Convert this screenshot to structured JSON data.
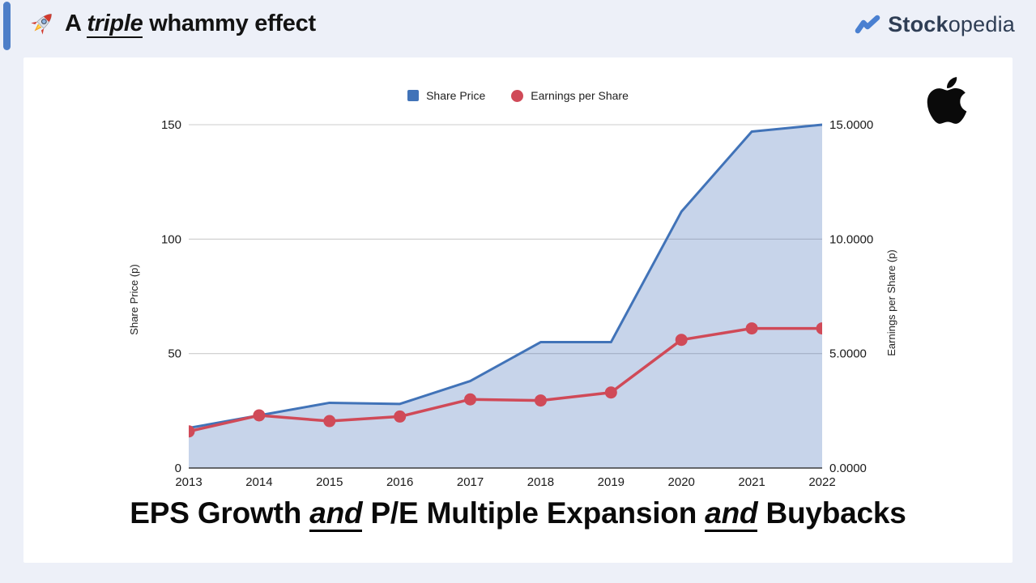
{
  "header": {
    "title": {
      "prefix": "A ",
      "emphasis": "triple",
      "suffix": " whammy effect"
    },
    "brand": {
      "name_bold": "Stock",
      "name_light": "opedia"
    }
  },
  "caption": {
    "part1": "EPS Growth ",
    "and1": "and",
    "part2": " P/E Multiple Expansion ",
    "and2": "and",
    "part3": " Buybacks"
  },
  "colors": {
    "page_background": "#edf0f8",
    "card_background": "#ffffff",
    "accent_bar": "#4d7ec8",
    "brand_blue": "#4a80d1",
    "brand_navy": "#2f3e55",
    "share_price_blue": "#4173b8",
    "eps_red": "#d04a58",
    "gridline": "#cccccc",
    "axis_line": "#3c3c3c"
  },
  "chart_data": {
    "type": "area",
    "categories": [
      "2013",
      "2014",
      "2015",
      "2016",
      "2017",
      "2018",
      "2019",
      "2020",
      "2021",
      "2022"
    ],
    "series": [
      {
        "name": "Share Price",
        "type": "area",
        "axis": "left",
        "color": "#4173b8",
        "fill": "rgba(68,114,185,0.30)",
        "marker": false,
        "values": [
          17.5,
          23,
          28.5,
          28,
          38,
          55,
          55,
          112,
          147,
          150
        ]
      },
      {
        "name": "Earnings per Share",
        "type": "line",
        "axis": "right",
        "color": "#d04a58",
        "marker": true,
        "values": [
          1.6,
          2.3,
          2.05,
          2.25,
          3.0,
          2.95,
          3.3,
          5.6,
          6.1,
          6.1
        ]
      }
    ],
    "left_axis": {
      "label": "Share Price (p)",
      "min": 0,
      "max": 150,
      "ticks": [
        0,
        50,
        100,
        150
      ],
      "tick_labels": [
        "0",
        "50",
        "100",
        "150"
      ]
    },
    "right_axis": {
      "label": "Earnings per Share (p)",
      "min": 0,
      "max": 15,
      "ticks": [
        0,
        5,
        10,
        15
      ],
      "tick_labels": [
        "0.0000",
        "5.0000",
        "10.0000",
        "15.0000"
      ]
    },
    "grid": true,
    "legend_position": "top"
  }
}
